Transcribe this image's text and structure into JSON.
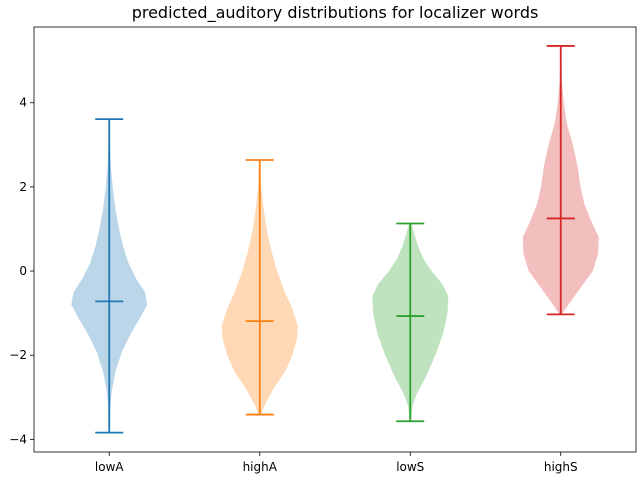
{
  "chart_data": {
    "type": "violin",
    "title": "predicted_auditory distributions for localizer words",
    "xlabel": "",
    "ylabel": "",
    "categories": [
      "lowA",
      "highA",
      "lowS",
      "highS"
    ],
    "ylim": [
      -4.3,
      5.8
    ],
    "yticks": [
      -4,
      -2,
      0,
      2,
      4
    ],
    "ytick_labels": [
      "−4",
      "−2",
      "0",
      "2",
      "4"
    ],
    "grid": false,
    "series": [
      {
        "category": "lowA",
        "color": "#1f77b4",
        "min": -3.84,
        "max": 3.61,
        "mean": -0.72,
        "density": [
          [
            -3.84,
            0.02
          ],
          [
            -3.2,
            0.03
          ],
          [
            -2.9,
            0.06
          ],
          [
            -2.4,
            0.16
          ],
          [
            -1.9,
            0.34
          ],
          [
            -1.5,
            0.56
          ],
          [
            -1.1,
            0.82
          ],
          [
            -0.8,
            1.0
          ],
          [
            -0.5,
            0.94
          ],
          [
            -0.2,
            0.72
          ],
          [
            0.2,
            0.5
          ],
          [
            0.6,
            0.36
          ],
          [
            1.0,
            0.26
          ],
          [
            1.5,
            0.16
          ],
          [
            2.0,
            0.09
          ],
          [
            2.5,
            0.04
          ],
          [
            3.0,
            0.02
          ],
          [
            3.61,
            0.01
          ]
        ]
      },
      {
        "category": "highA",
        "color": "#ff7f0e",
        "min": -3.41,
        "max": 2.64,
        "mean": -1.19,
        "density": [
          [
            -3.41,
            0.04
          ],
          [
            -3.2,
            0.12
          ],
          [
            -2.8,
            0.36
          ],
          [
            -2.4,
            0.66
          ],
          [
            -2.0,
            0.86
          ],
          [
            -1.6,
            0.98
          ],
          [
            -1.3,
            1.0
          ],
          [
            -0.9,
            0.86
          ],
          [
            -0.5,
            0.66
          ],
          [
            0.0,
            0.46
          ],
          [
            0.5,
            0.3
          ],
          [
            1.0,
            0.18
          ],
          [
            1.5,
            0.1
          ],
          [
            2.0,
            0.04
          ],
          [
            2.64,
            0.01
          ]
        ]
      },
      {
        "category": "lowS",
        "color": "#2ca02c",
        "min": -3.57,
        "max": 1.13,
        "mean": -1.07,
        "density": [
          [
            -3.57,
            0.02
          ],
          [
            -3.2,
            0.06
          ],
          [
            -2.9,
            0.18
          ],
          [
            -2.5,
            0.42
          ],
          [
            -2.0,
            0.66
          ],
          [
            -1.5,
            0.86
          ],
          [
            -1.0,
            0.98
          ],
          [
            -0.6,
            1.0
          ],
          [
            -0.3,
            0.84
          ],
          [
            0.0,
            0.56
          ],
          [
            0.3,
            0.34
          ],
          [
            0.6,
            0.2
          ],
          [
            0.9,
            0.1
          ],
          [
            1.13,
            0.03
          ]
        ]
      },
      {
        "category": "highS",
        "color": "#d62728",
        "min": -1.03,
        "max": 5.35,
        "mean": 1.25,
        "density": [
          [
            -1.03,
            0.03
          ],
          [
            -0.8,
            0.2
          ],
          [
            -0.4,
            0.52
          ],
          [
            0.0,
            0.84
          ],
          [
            0.4,
            0.98
          ],
          [
            0.8,
            1.0
          ],
          [
            1.2,
            0.8
          ],
          [
            1.6,
            0.62
          ],
          [
            2.0,
            0.52
          ],
          [
            2.5,
            0.44
          ],
          [
            3.0,
            0.32
          ],
          [
            3.5,
            0.16
          ],
          [
            4.0,
            0.08
          ],
          [
            4.5,
            0.03
          ],
          [
            5.35,
            0.01
          ]
        ]
      }
    ]
  }
}
